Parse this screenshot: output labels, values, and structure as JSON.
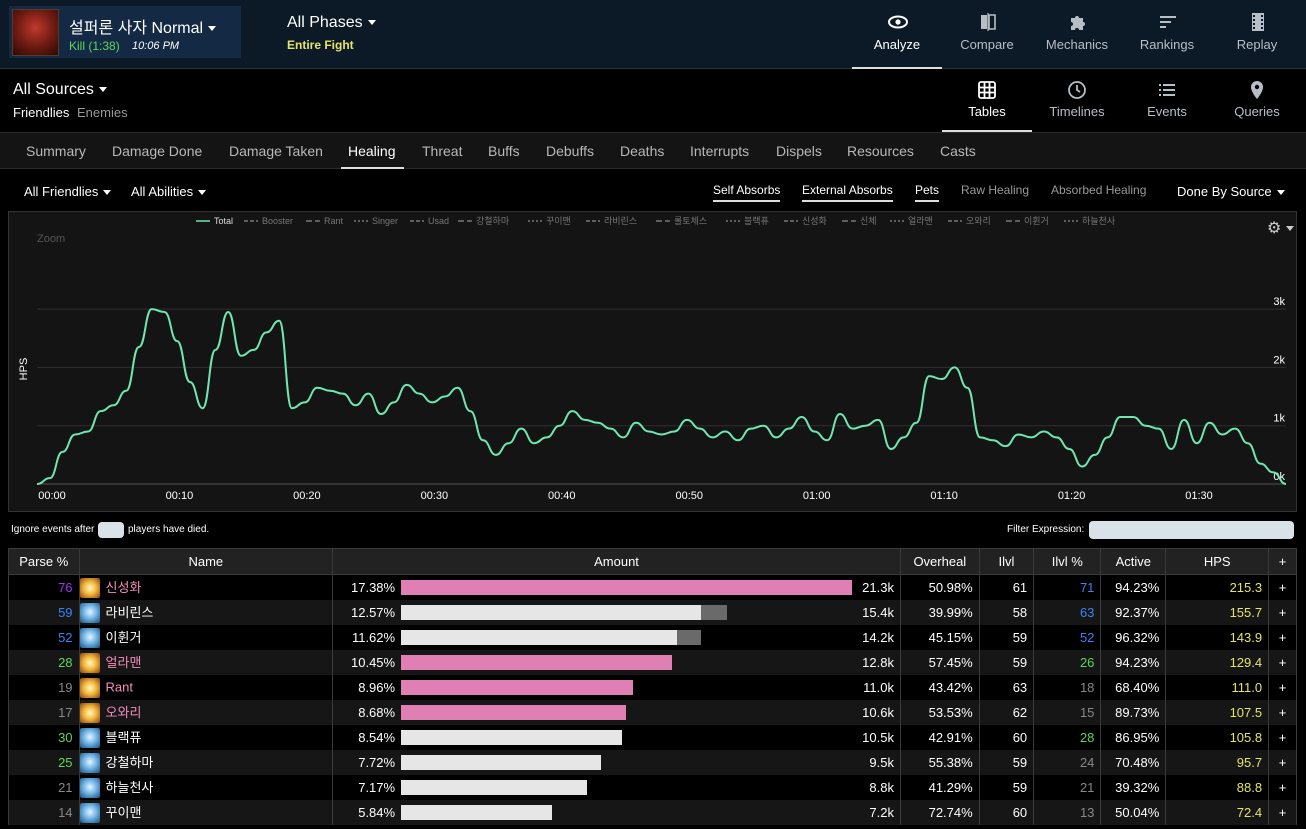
{
  "report": {
    "boss_name": "설퍼론 사자 Normal",
    "kill_label": "Kill (1:38)",
    "time": "10:06 PM"
  },
  "phases": {
    "label": "All Phases",
    "sub": "Entire Fight"
  },
  "top_nav": [
    {
      "label": "Analyze",
      "icon": "eye-icon",
      "active": true
    },
    {
      "label": "Compare",
      "icon": "compare-icon",
      "active": false
    },
    {
      "label": "Mechanics",
      "icon": "puzzle-icon",
      "active": false
    },
    {
      "label": "Rankings",
      "icon": "rankings-icon",
      "active": false
    },
    {
      "label": "Replay",
      "icon": "film-icon",
      "active": false
    }
  ],
  "sources": {
    "label": "All Sources",
    "friendlies": "Friendlies",
    "enemies": "Enemies"
  },
  "view_nav": [
    {
      "label": "Tables",
      "icon": "grid-icon",
      "active": true
    },
    {
      "label": "Timelines",
      "icon": "clock-icon",
      "active": false
    },
    {
      "label": "Events",
      "icon": "list-icon",
      "active": false
    },
    {
      "label": "Queries",
      "icon": "map-pin-icon",
      "active": false
    }
  ],
  "tabs": [
    "Summary",
    "Damage Done",
    "Damage Taken",
    "Healing",
    "Threat",
    "Buffs",
    "Debuffs",
    "Deaths",
    "Interrupts",
    "Dispels",
    "Resources",
    "Casts"
  ],
  "active_tab": "Healing",
  "filters": {
    "friendlies": "All Friendlies",
    "abilities": "All Abilities",
    "options": [
      {
        "label": "Self Absorbs",
        "on": true
      },
      {
        "label": "External Absorbs",
        "on": true
      },
      {
        "label": "Pets",
        "on": true
      },
      {
        "label": "Raw Healing",
        "on": false
      },
      {
        "label": "Absorbed Healing",
        "on": false
      }
    ],
    "done_by": "Done By Source"
  },
  "chart_data": {
    "type": "line",
    "ylabel": "HPS",
    "zoom_label": "Zoom",
    "ylim": [
      0,
      4000
    ],
    "y_ticks": [
      {
        "v": 0,
        "label": "0k"
      },
      {
        "v": 1000,
        "label": "1k"
      },
      {
        "v": 2000,
        "label": "2k"
      },
      {
        "v": 3000,
        "label": "3k"
      }
    ],
    "x_ticks": [
      {
        "t": 0,
        "label": "00:00"
      },
      {
        "t": 10,
        "label": "00:10"
      },
      {
        "t": 20,
        "label": "00:20"
      },
      {
        "t": 30,
        "label": "00:30"
      },
      {
        "t": 40,
        "label": "00:40"
      },
      {
        "t": 50,
        "label": "00:50"
      },
      {
        "t": 60,
        "label": "01:00"
      },
      {
        "t": 70,
        "label": "01:10"
      },
      {
        "t": 80,
        "label": "01:20"
      },
      {
        "t": 90,
        "label": "01:30"
      }
    ],
    "xlim": [
      0,
      98
    ],
    "legend": [
      "Total",
      "Booster",
      "Rant",
      "Singer",
      "Usad",
      "강철하마",
      "꾸이맨",
      "라비린스",
      "롤토체스",
      "블랙퓨",
      "신성화",
      "신체",
      "얼라맨",
      "오와리",
      "이휜거",
      "하늘천사"
    ],
    "series": [
      {
        "name": "Total",
        "color": "#6ee7b0",
        "x": [
          0,
          1,
          2,
          3,
          4,
          5,
          6,
          7,
          8,
          9,
          10,
          11,
          12,
          13,
          14,
          15,
          16,
          17,
          18,
          19,
          20,
          21,
          22,
          23,
          24,
          25,
          26,
          27,
          28,
          29,
          30,
          31,
          32,
          33,
          34,
          35,
          36,
          37,
          38,
          39,
          40,
          41,
          42,
          43,
          44,
          45,
          46,
          47,
          48,
          49,
          50,
          51,
          52,
          53,
          54,
          55,
          56,
          57,
          58,
          59,
          60,
          61,
          62,
          63,
          64,
          65,
          66,
          67,
          68,
          69,
          70,
          71,
          72,
          73,
          74,
          75,
          76,
          77,
          78,
          79,
          80,
          81,
          82,
          83,
          84,
          85,
          86,
          87,
          88,
          89,
          90,
          91,
          92,
          93,
          94,
          95,
          96,
          97,
          98
        ],
        "values": [
          0,
          100,
          550,
          850,
          900,
          1250,
          1350,
          1600,
          2350,
          3000,
          2950,
          2450,
          1750,
          1300,
          2300,
          2950,
          2200,
          2300,
          2600,
          2800,
          1300,
          1400,
          1650,
          1600,
          1550,
          1350,
          1550,
          1200,
          1400,
          1700,
          1550,
          1400,
          1500,
          1650,
          1250,
          750,
          500,
          700,
          950,
          700,
          800,
          1000,
          1250,
          1100,
          1050,
          950,
          800,
          1050,
          900,
          850,
          900,
          1100,
          950,
          800,
          900,
          750,
          950,
          1000,
          800,
          950,
          1150,
          900,
          750,
          1200,
          950,
          1000,
          1100,
          600,
          800,
          1050,
          1850,
          1800,
          2000,
          1650,
          800,
          750,
          650,
          850,
          800,
          900,
          800,
          600,
          300,
          500,
          800,
          1150,
          1150,
          1000,
          950,
          600,
          1100,
          700,
          1050,
          850,
          950,
          700,
          350,
          200,
          0
        ]
      }
    ]
  },
  "death_filter": {
    "prefix": "Ignore events after",
    "suffix": "players have died."
  },
  "filter_expression_label": "Filter Expression:",
  "table": {
    "headers": [
      "Parse %",
      "Name",
      "Amount",
      "Overheal",
      "Ilvl",
      "Ilvl %",
      "Active",
      "HPS",
      "+"
    ],
    "rows": [
      {
        "parse": "76",
        "parse_color": "#a335ee",
        "name": "신성화",
        "name_color": "#f48cba",
        "cls": "priest",
        "pct": "17.38%",
        "bar": 1.0,
        "over": 0.0,
        "bar_color": "#e07fb4",
        "amount": "21.3k",
        "overheal": "50.98%",
        "ilvl": "61",
        "ilvl_pct": "71",
        "ilvl_color": "#3b82f6",
        "active": "94.23%",
        "hps": "215.3"
      },
      {
        "parse": "59",
        "parse_color": "#3b82f6",
        "name": "라비린스",
        "name_color": "#ffffff",
        "cls": "shaman",
        "pct": "12.57%",
        "bar": 0.666,
        "over": 0.057,
        "bar_color": "#e6e6e6",
        "amount": "15.4k",
        "overheal": "39.99%",
        "ilvl": "58",
        "ilvl_pct": "63",
        "ilvl_color": "#3b82f6",
        "active": "92.37%",
        "hps": "155.7"
      },
      {
        "parse": "52",
        "parse_color": "#3b82f6",
        "name": "이휜거",
        "name_color": "#ffffff",
        "cls": "shaman",
        "pct": "11.62%",
        "bar": 0.611,
        "over": 0.053,
        "bar_color": "#e6e6e6",
        "amount": "14.2k",
        "overheal": "45.15%",
        "ilvl": "59",
        "ilvl_pct": "52",
        "ilvl_color": "#3b82f6",
        "active": "96.32%",
        "hps": "143.9"
      },
      {
        "parse": "28",
        "parse_color": "#5dd65d",
        "name": "얼라맨",
        "name_color": "#f48cba",
        "cls": "priest",
        "pct": "10.45%",
        "bar": 0.601,
        "over": 0.0,
        "bar_color": "#e07fb4",
        "amount": "12.8k",
        "overheal": "57.45%",
        "ilvl": "59",
        "ilvl_pct": "26",
        "ilvl_color": "#5dd65d",
        "active": "94.23%",
        "hps": "129.4"
      },
      {
        "parse": "19",
        "parse_color": "#888888",
        "name": "Rant",
        "name_color": "#f48cba",
        "cls": "priest",
        "pct": "8.96%",
        "bar": 0.514,
        "over": 0.0,
        "bar_color": "#e07fb4",
        "amount": "11.0k",
        "overheal": "43.42%",
        "ilvl": "63",
        "ilvl_pct": "18",
        "ilvl_color": "#888888",
        "active": "68.40%",
        "hps": "111.0"
      },
      {
        "parse": "17",
        "parse_color": "#888888",
        "name": "오와리",
        "name_color": "#f48cba",
        "cls": "priest",
        "pct": "8.68%",
        "bar": 0.498,
        "over": 0.0,
        "bar_color": "#e07fb4",
        "amount": "10.6k",
        "overheal": "53.53%",
        "ilvl": "62",
        "ilvl_pct": "15",
        "ilvl_color": "#888888",
        "active": "89.73%",
        "hps": "107.5"
      },
      {
        "parse": "30",
        "parse_color": "#5dd65d",
        "name": "블랙퓨",
        "name_color": "#ffffff",
        "cls": "shaman",
        "pct": "8.54%",
        "bar": 0.49,
        "over": 0.0,
        "bar_color": "#e6e6e6",
        "amount": "10.5k",
        "overheal": "42.91%",
        "ilvl": "60",
        "ilvl_pct": "28",
        "ilvl_color": "#5dd65d",
        "active": "86.95%",
        "hps": "105.8"
      },
      {
        "parse": "25",
        "parse_color": "#5dd65d",
        "name": "강철하마",
        "name_color": "#ffffff",
        "cls": "shaman",
        "pct": "7.72%",
        "bar": 0.443,
        "over": 0.0,
        "bar_color": "#e6e6e6",
        "amount": "9.5k",
        "overheal": "55.38%",
        "ilvl": "59",
        "ilvl_pct": "24",
        "ilvl_color": "#888888",
        "active": "70.48%",
        "hps": "95.7"
      },
      {
        "parse": "21",
        "parse_color": "#888888",
        "name": "하늘천사",
        "name_color": "#ffffff",
        "cls": "shaman",
        "pct": "7.17%",
        "bar": 0.412,
        "over": 0.0,
        "bar_color": "#e6e6e6",
        "amount": "8.8k",
        "overheal": "41.29%",
        "ilvl": "59",
        "ilvl_pct": "21",
        "ilvl_color": "#888888",
        "active": "39.32%",
        "hps": "88.8"
      },
      {
        "parse": "14",
        "parse_color": "#888888",
        "name": "꾸이맨",
        "name_color": "#ffffff",
        "cls": "shaman",
        "pct": "5.84%",
        "bar": 0.335,
        "over": 0.0,
        "bar_color": "#e6e6e6",
        "amount": "7.2k",
        "overheal": "72.74%",
        "ilvl": "60",
        "ilvl_pct": "13",
        "ilvl_color": "#888888",
        "active": "50.04%",
        "hps": "72.4"
      }
    ]
  },
  "colors": {
    "hps": "#e6e36a",
    "accent": "#6ee7b0"
  }
}
